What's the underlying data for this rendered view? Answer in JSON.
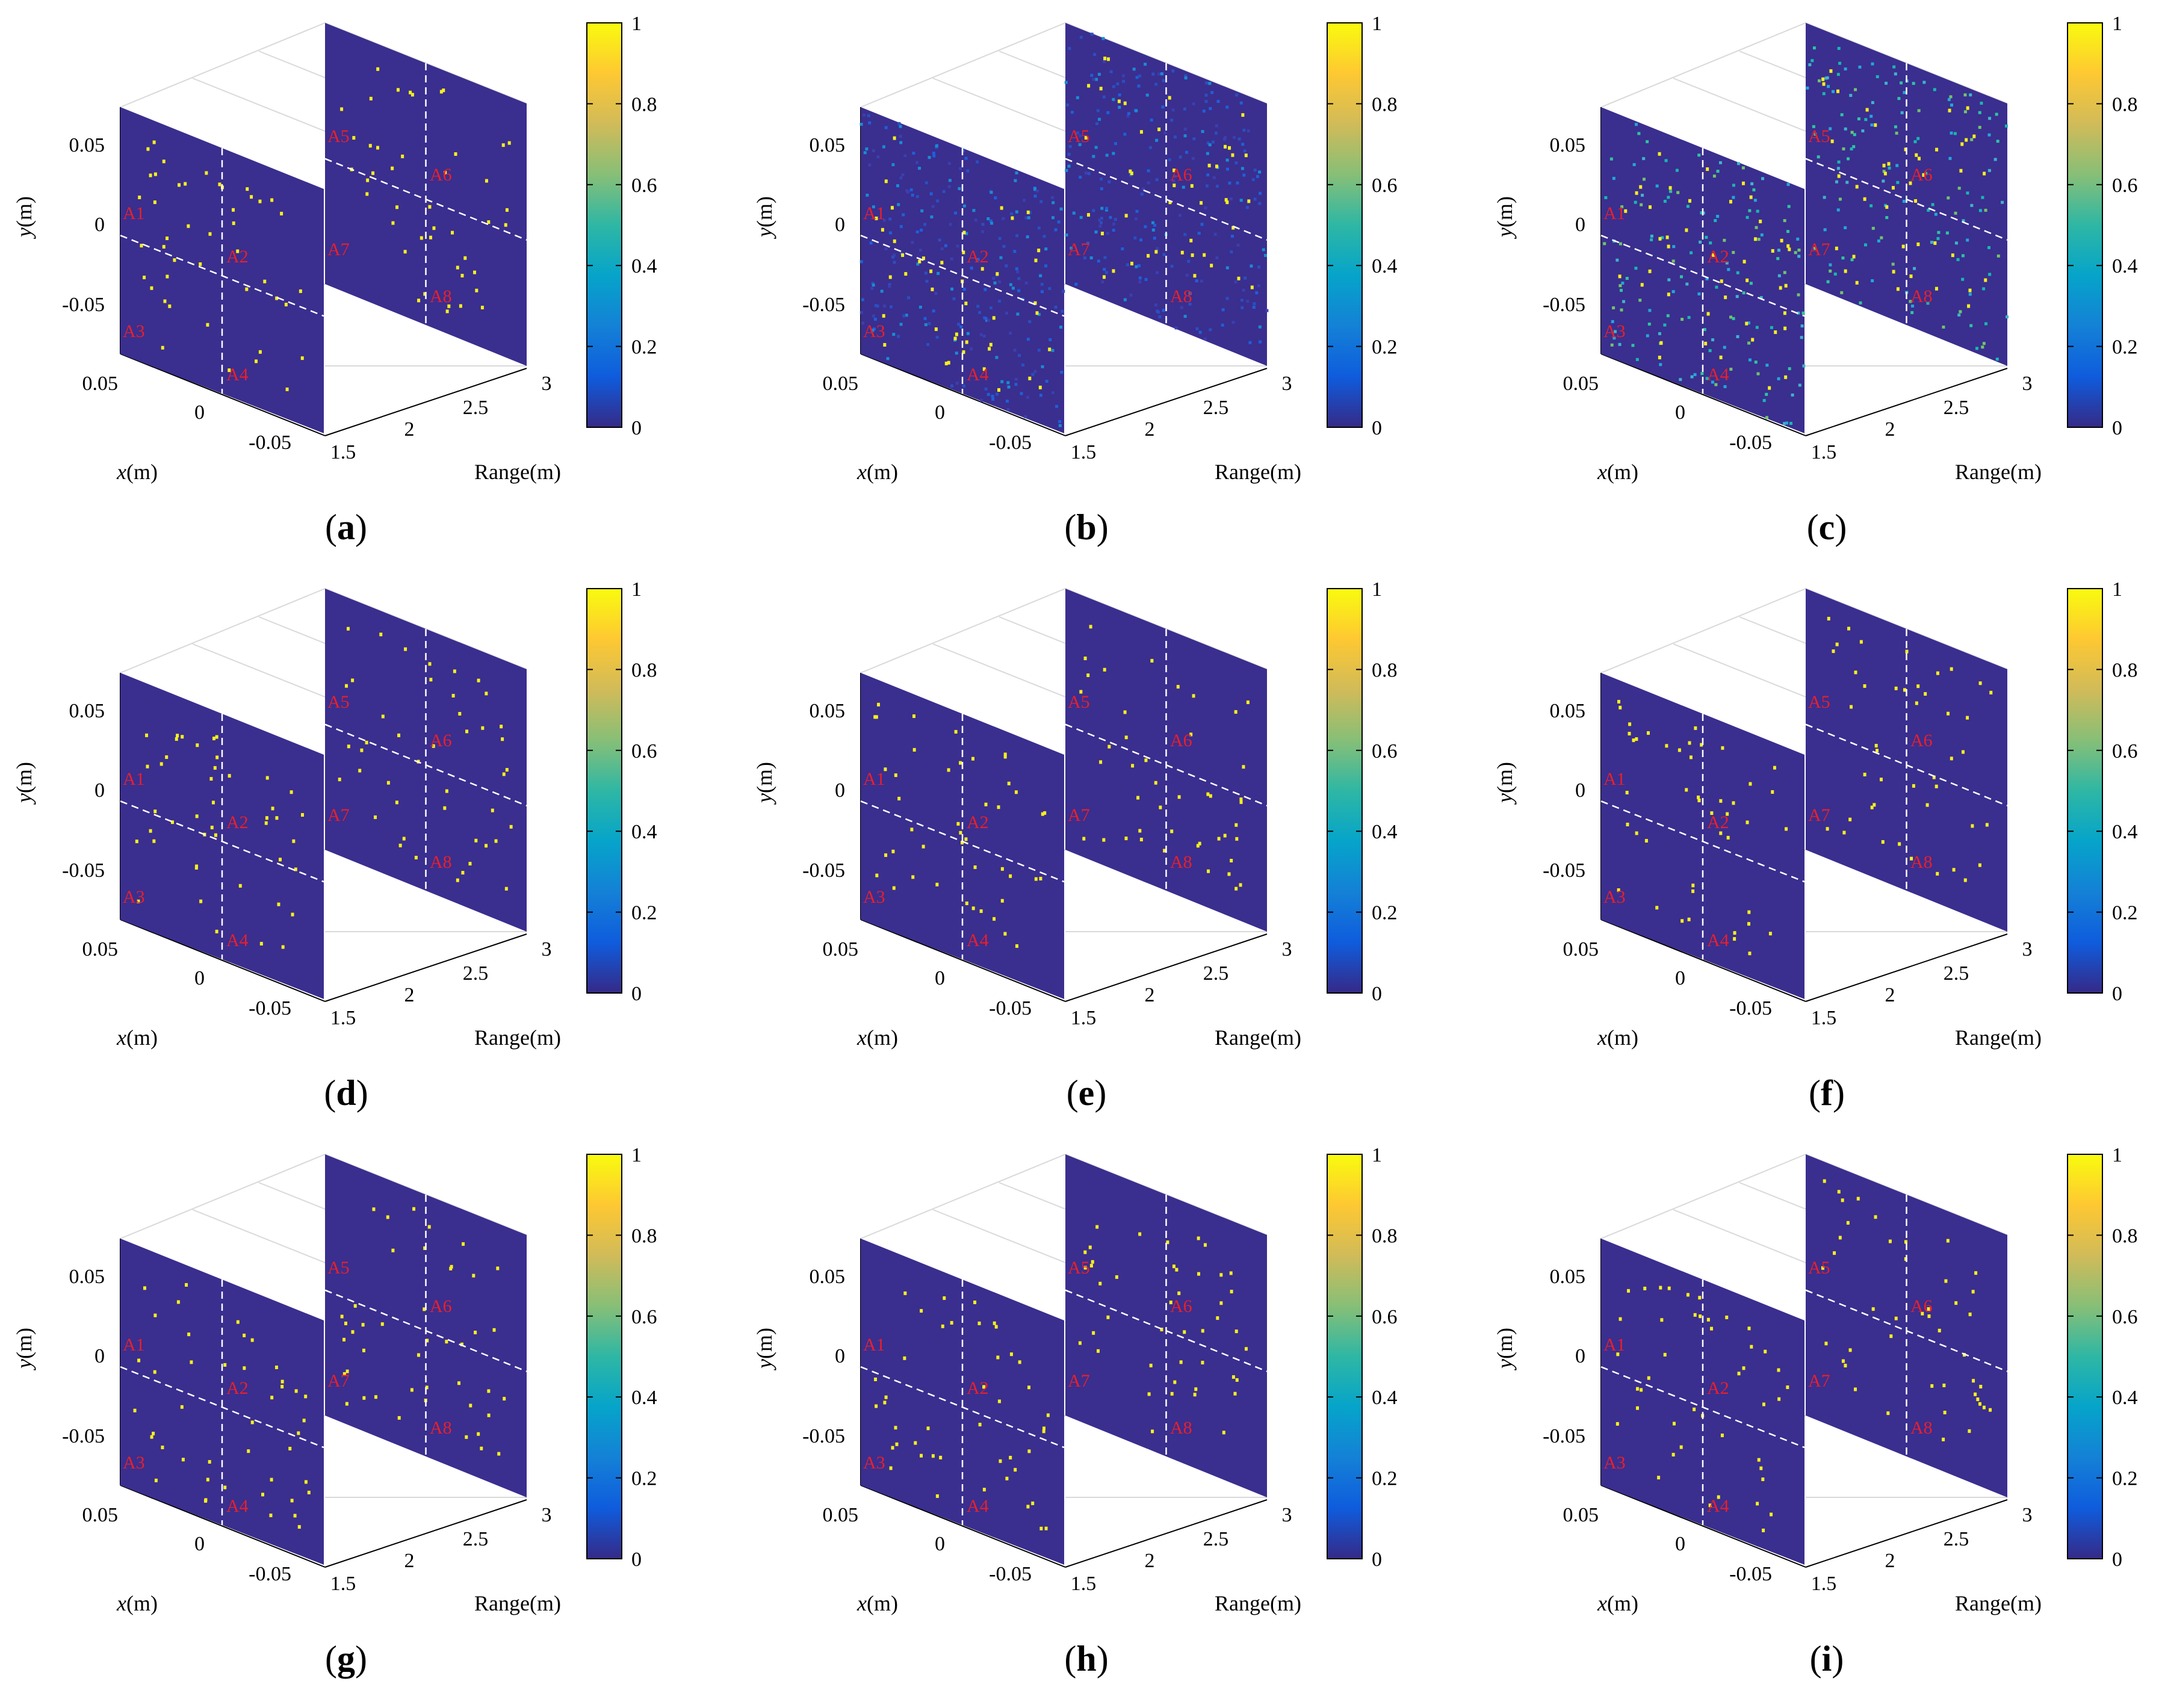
{
  "figure": {
    "panels": [
      {
        "id": "a",
        "label": "(a)",
        "bold": "a",
        "noise": "none"
      },
      {
        "id": "b",
        "label": "(b)",
        "bold": "b",
        "noise": "heavy"
      },
      {
        "id": "c",
        "label": "(c)",
        "bold": "c",
        "noise": "clutter"
      },
      {
        "id": "d",
        "label": "(d)",
        "bold": "d",
        "noise": "none"
      },
      {
        "id": "e",
        "label": "(e)",
        "bold": "e",
        "noise": "none"
      },
      {
        "id": "f",
        "label": "(f)",
        "bold": "f",
        "noise": "none"
      },
      {
        "id": "g",
        "label": "(g)",
        "bold": "g",
        "noise": "none"
      },
      {
        "id": "h",
        "label": "(h)",
        "bold": "h",
        "noise": "none"
      },
      {
        "id": "i",
        "label": "(i)",
        "bold": "i",
        "noise": "none"
      }
    ],
    "axes": {
      "ylabel_italic": "y",
      "ylabel_unit": "(m)",
      "xlabel_italic": "x",
      "xlabel_unit": "(m)",
      "range_label": "Range(m)",
      "y_ticks": [
        "0.05",
        "0",
        "-0.05"
      ],
      "x_ticks": [
        "0.05",
        "0",
        "-0.05"
      ],
      "range_ticks": [
        "1.5",
        "2",
        "2.5",
        "3"
      ]
    },
    "region_labels": [
      "A1",
      "A2",
      "A3",
      "A4",
      "A5",
      "A6",
      "A7",
      "A8"
    ],
    "colorbar": {
      "ticks": [
        "0",
        "0.2",
        "0.4",
        "0.6",
        "0.8",
        "1"
      ],
      "colormap": "parula",
      "stops": [
        "#352a87",
        "#0f5cdd",
        "#1481d6",
        "#06a4ca",
        "#2eb7a4",
        "#87bf77",
        "#d1bb59",
        "#fec832",
        "#f9fb0e"
      ]
    },
    "colors": {
      "plane": "#3a2e8f",
      "scatter": "#f6ef1d",
      "dashed": "#ffffff",
      "region_label": "#e8202a"
    }
  },
  "chart_data": {
    "type": "scatter",
    "description_axes": {
      "x": "x(m)",
      "y": "y(m)",
      "z": "Range(m)"
    },
    "xlim": [
      -0.075,
      0.075
    ],
    "ylim": [
      -0.075,
      0.075
    ],
    "range_lim": [
      1.5,
      3
    ],
    "color_lim": [
      0,
      1
    ],
    "planes": [
      {
        "range": 1.5,
        "regions": [
          "A1",
          "A2",
          "A3",
          "A4"
        ]
      },
      {
        "range": 3,
        "regions": [
          "A5",
          "A6",
          "A7",
          "A8"
        ]
      }
    ],
    "panels": [
      "a",
      "b",
      "c",
      "d",
      "e",
      "f",
      "g",
      "h",
      "i"
    ]
  }
}
